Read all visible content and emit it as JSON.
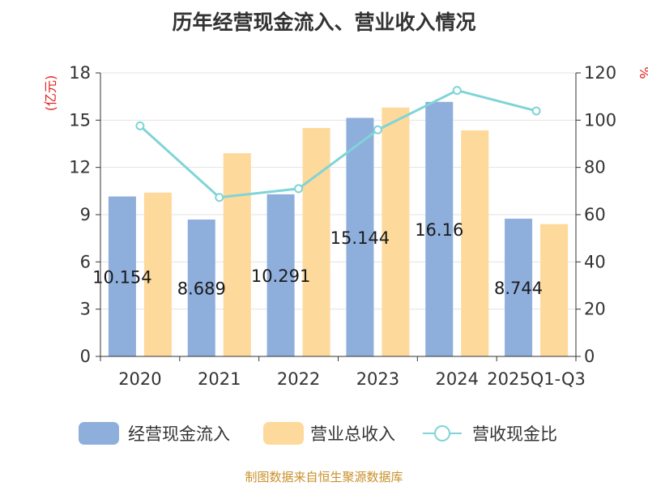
{
  "chart_data": {
    "type": "bar",
    "title": "历年经营现金流入、营业收入情况",
    "categories": [
      "2020",
      "2021",
      "2022",
      "2023",
      "2024",
      "2025Q1-Q3"
    ],
    "series": [
      {
        "name": "经营现金流入",
        "kind": "bar",
        "axis": "left",
        "color": "#8eaedc",
        "values": [
          10.154,
          8.689,
          10.291,
          15.144,
          16.16,
          8.744
        ],
        "labels": [
          "10.154",
          "8.689",
          "10.291",
          "15.144",
          "16.16",
          "8.744"
        ]
      },
      {
        "name": "营业总收入",
        "kind": "bar",
        "axis": "left",
        "color": "#fdd99b",
        "values": [
          10.4,
          12.9,
          14.5,
          15.8,
          14.35,
          8.4
        ]
      },
      {
        "name": "营收现金比",
        "kind": "line",
        "axis": "right",
        "color": "#80d4d8",
        "values": [
          97.6,
          67.3,
          71.0,
          95.9,
          112.6,
          103.9
        ]
      }
    ],
    "left_axis": {
      "label": "(亿元)",
      "min": 0,
      "max": 18,
      "ticks": [
        0,
        3,
        6,
        9,
        12,
        15,
        18
      ]
    },
    "right_axis": {
      "label": "%",
      "min": 0,
      "max": 120,
      "ticks": [
        0,
        20,
        40,
        60,
        80,
        100,
        120
      ]
    },
    "grid": true,
    "legend_position": "bottom"
  },
  "footer": {
    "source": "制图数据来自恒生聚源数据库"
  }
}
